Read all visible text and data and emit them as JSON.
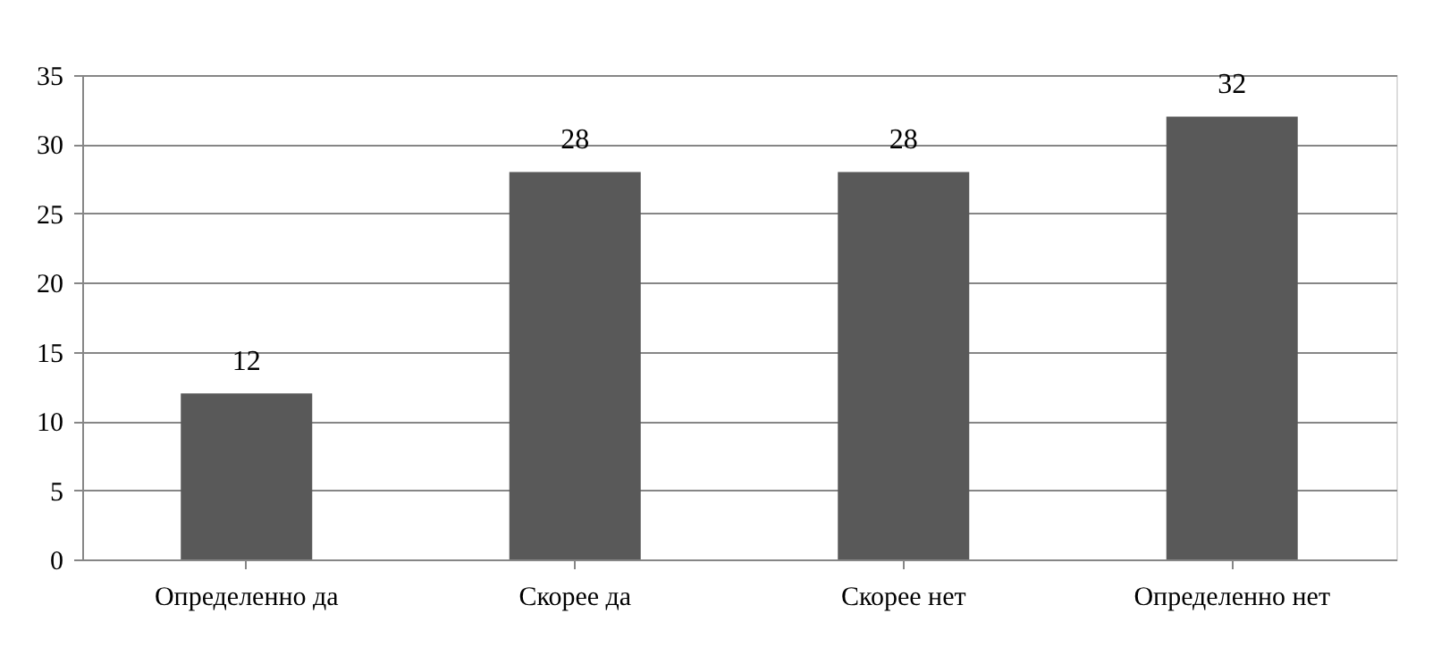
{
  "chart_data": {
    "type": "bar",
    "categories": [
      "Определенно да",
      "Скорее да",
      "Скорее нет",
      "Определенно нет"
    ],
    "values": [
      12,
      28,
      28,
      32
    ],
    "color": "#595959",
    "ylim": [
      0,
      35
    ],
    "yticks": [
      0,
      5,
      10,
      15,
      20,
      25,
      30,
      35
    ],
    "grid": "y",
    "data_labels": true
  }
}
